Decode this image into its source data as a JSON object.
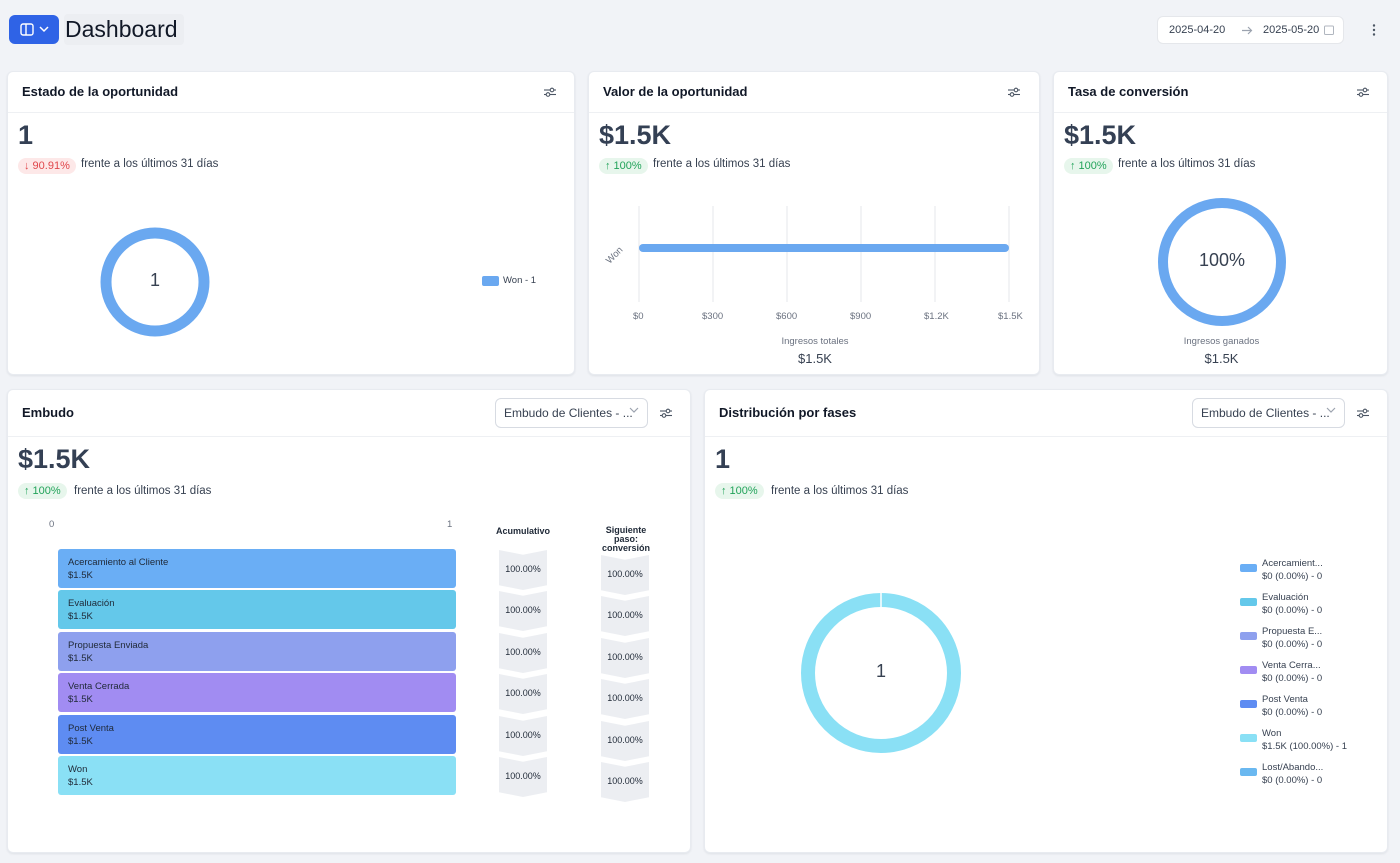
{
  "header": {
    "title": "Dashboard",
    "date_start": "2025-04-20",
    "date_end": "2025-05-20",
    "colors": {
      "primary": "#2563eb"
    }
  },
  "cards": {
    "estado": {
      "title": "Estado de la oportunidad",
      "value": "1",
      "badge": "↓ 90.91%",
      "compare": "frente a los últimos 31 días",
      "donut_center": "1",
      "legend": "Won - 1",
      "color": "#6aa8f0"
    },
    "valor": {
      "title": "Valor de la oportunidad",
      "value": "$1.5K",
      "badge": "↑ 100%",
      "compare": "frente a los últimos 31 días",
      "y_label": "Won",
      "x_ticks": [
        "$0",
        "$300",
        "$600",
        "$900",
        "$1.2K",
        "$1.5K"
      ],
      "footer_label": "Ingresos totales",
      "footer_value": "$1.5K"
    },
    "tasa": {
      "title": "Tasa de conversión",
      "value": "$1.5K",
      "badge": "↑ 100%",
      "compare": "frente a los últimos 31 días",
      "donut_center": "100%",
      "footer_label": "Ingresos ganados",
      "footer_value": "$1.5K"
    },
    "embudo": {
      "title": "Embudo",
      "select": "Embudo de Clientes - ...",
      "value": "$1.5K",
      "badge": "↑ 100%",
      "compare": "frente a los últimos 31 días",
      "axis_min": "0",
      "axis_max": "1",
      "col_cumulative": "Acumulativo",
      "col_next": "Siguiente paso: conversión",
      "stages": [
        {
          "name": "Acercamiento al Cliente",
          "value": "$1.5K",
          "cum": "100.00%",
          "next": "100.00%",
          "color": "#6aaef5"
        },
        {
          "name": "Evaluación",
          "value": "$1.5K",
          "cum": "100.00%",
          "next": "100.00%",
          "color": "#64c8ea"
        },
        {
          "name": "Propuesta Enviada",
          "value": "$1.5K",
          "cum": "100.00%",
          "next": "100.00%",
          "color": "#8ea0ee"
        },
        {
          "name": "Venta Cerrada",
          "value": "$1.5K",
          "cum": "100.00%",
          "next": "100.00%",
          "color": "#a18cf2"
        },
        {
          "name": "Post Venta",
          "value": "$1.5K",
          "cum": "100.00%",
          "next": "100.00%",
          "color": "#5e8cf2"
        },
        {
          "name": "Won",
          "value": "$1.5K",
          "cum": "100.00%",
          "next": "100.00%",
          "color": "#8ae0f5"
        }
      ]
    },
    "distribucion": {
      "title": "Distribución por fases",
      "select": "Embudo de Clientes - ...",
      "value": "1",
      "badge": "↑ 100%",
      "compare": "frente a los últimos 31 días",
      "donut_center": "1",
      "legend": [
        {
          "name": "Acercamient...",
          "detail": "$0 (0.00%) - 0",
          "color": "#6aaef5"
        },
        {
          "name": "Evaluación",
          "detail": "$0 (0.00%) - 0",
          "color": "#64c8ea"
        },
        {
          "name": "Propuesta E...",
          "detail": "$0 (0.00%) - 0",
          "color": "#8ea0ee"
        },
        {
          "name": "Venta Cerra...",
          "detail": "$0 (0.00%) - 0",
          "color": "#a18cf2"
        },
        {
          "name": "Post Venta",
          "detail": "$0 (0.00%) - 0",
          "color": "#5e8cf2"
        },
        {
          "name": "Won",
          "detail": "$1.5K (100.00%) - 1",
          "color": "#8ae0f5"
        },
        {
          "name": "Lost/Abando...",
          "detail": "$0 (0.00%) - 0",
          "color": "#6ab8f0"
        }
      ]
    }
  }
}
